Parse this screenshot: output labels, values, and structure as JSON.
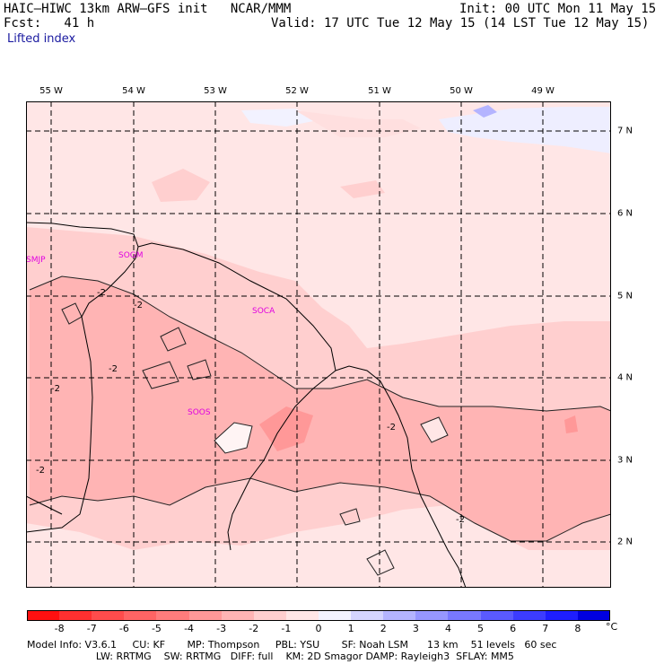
{
  "header": {
    "model_line": "HAIC–HIWC 13km ARW–GFS init   NCAR/MMM",
    "init_line": "Init: 00 UTC Mon 11 May 15",
    "fcst_line": "Fcst:   41 h",
    "valid_line": "Valid: 17 UTC Tue 12 May 15 (14 LST Tue 12 May 15)",
    "field_name": "Lifted index"
  },
  "map": {
    "lon_labels": [
      "55 W",
      "54 W",
      "53 W",
      "52 W",
      "51 W",
      "50 W",
      "49 W"
    ],
    "lat_labels": [
      "7 N",
      "6 N",
      "5 N",
      "4 N",
      "3 N",
      "2 N"
    ],
    "stations": [
      "SMJP",
      "SOGM",
      "SOCA",
      "SOOS"
    ],
    "contour_labels": [
      "-2",
      "-2",
      "-2",
      "-2",
      "-2",
      "-2",
      "-2"
    ],
    "station_color": "#e000e0"
  },
  "colorbar": {
    "ticks": [
      "-8",
      "-7",
      "-6",
      "-5",
      "-4",
      "-3",
      "-2",
      "-1",
      "0",
      "1",
      "2",
      "3",
      "4",
      "5",
      "6",
      "7",
      "8"
    ],
    "unit": "°C",
    "colors": [
      "#ff1010",
      "#ff3030",
      "#ff4c4c",
      "#ff6464",
      "#ff7c7c",
      "#ff9898",
      "#ffb4b4",
      "#ffcfcf",
      "#ffe6e6",
      "#f2f2ff",
      "#d4d4ff",
      "#b4b4ff",
      "#9696ff",
      "#7878ff",
      "#5a5aff",
      "#3c3cff",
      "#1e1eff",
      "#0000e0"
    ]
  },
  "footer": {
    "line1": "Model Info: V3.6.1     CU: KF       MP: Thompson     PBL: YSU       SF: Noah LSM      13 km    51 levels   60 sec",
    "line2": "                      LW: RRTMG    SW: RRTMG   DIFF: full    KM: 2D Smagor DAMP: Rayleigh3  SFLAY: MM5"
  }
}
